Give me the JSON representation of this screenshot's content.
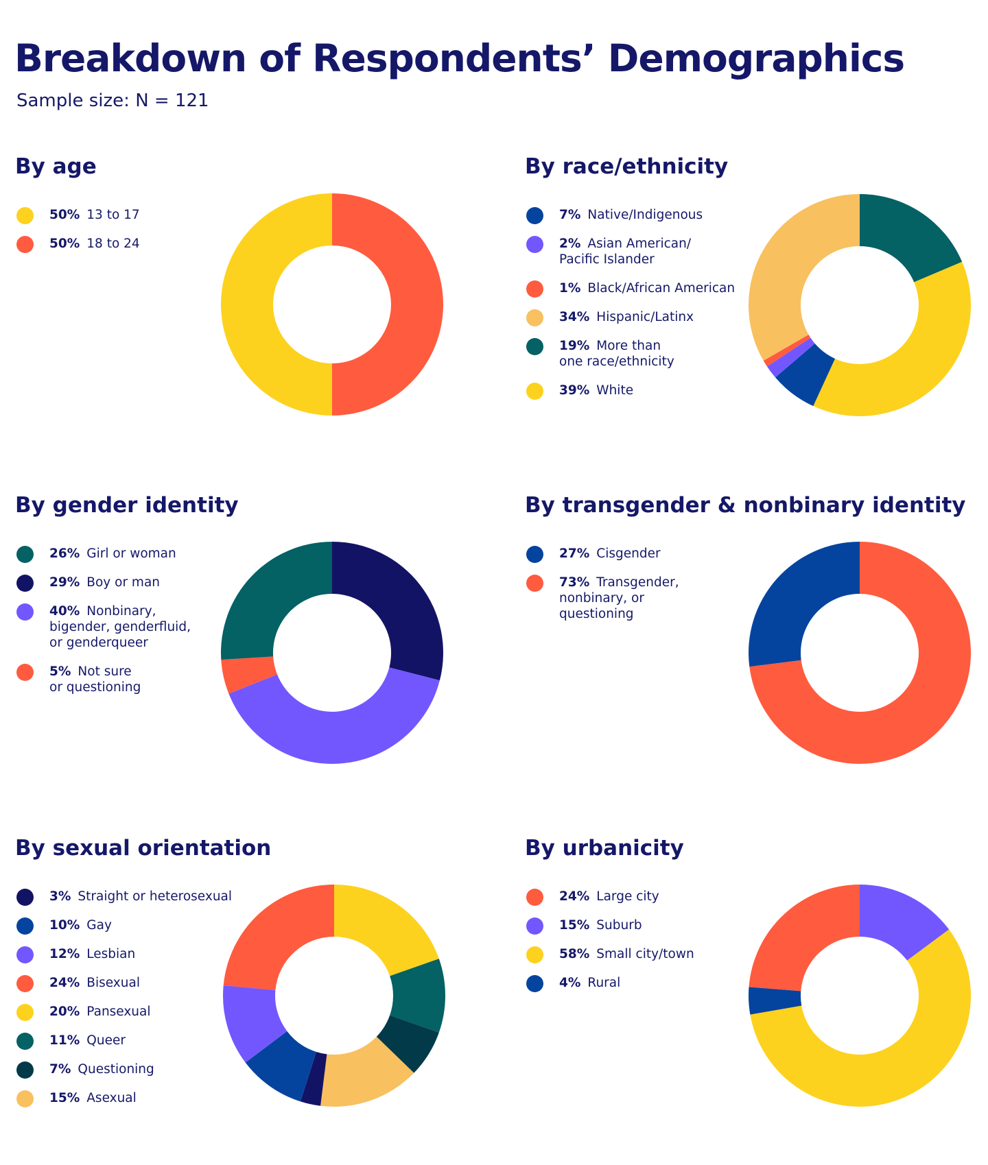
{
  "title": "Breakdown of Respondents’ Demographics",
  "subtitle": "Sample size: N = 121",
  "colors": {
    "text": "#151868",
    "yellow": "#FDD21E",
    "red": "#FF5B3F",
    "blue": "#05449E",
    "purple": "#7257FF",
    "light_orange": "#F8C05F",
    "teal": "#046164",
    "navy": "#131365",
    "dark_teal": "#023A4A"
  },
  "chart_data": [
    {
      "type": "pie",
      "title": "By age",
      "categories": [
        "13 to 17",
        "18 to 24"
      ],
      "values": [
        50,
        50
      ],
      "value_labels": [
        "50%",
        "50%"
      ],
      "colors": [
        "#FDD21E",
        "#FF5B3F"
      ],
      "slice_order": [
        1,
        0
      ],
      "donut": true
    },
    {
      "type": "pie",
      "title": "By race/ethnicity",
      "categories": [
        "Native/Indigenous",
        "Asian American/\nPacific Islander",
        "Black/African American",
        "Hispanic/Latinx",
        "More than\none race/ethnicity",
        "White"
      ],
      "values": [
        7,
        2,
        1,
        34,
        19,
        39
      ],
      "value_labels": [
        "7%",
        "2%",
        "1%",
        "34%",
        "19%",
        "39%"
      ],
      "colors": [
        "#05449E",
        "#7257FF",
        "#FF5B3F",
        "#F8C05F",
        "#046164",
        "#FDD21E"
      ],
      "slice_order": [
        4,
        5,
        0,
        1,
        2,
        3
      ],
      "donut": true
    },
    {
      "type": "pie",
      "title": "By gender identity",
      "categories": [
        "Girl or woman",
        "Boy or man",
        "Nonbinary,\nbigender, genderfluid,\nor genderqueer",
        "Not sure\nor questioning"
      ],
      "values": [
        26,
        29,
        40,
        5
      ],
      "value_labels": [
        "26%",
        "29%",
        "40%",
        "5%"
      ],
      "colors": [
        "#046164",
        "#131365",
        "#7257FF",
        "#FF5B3F"
      ],
      "slice_order": [
        1,
        2,
        3,
        0
      ],
      "donut": true
    },
    {
      "type": "pie",
      "title": "By transgender & nonbinary identity",
      "categories": [
        "Cisgender",
        "Transgender,\nnonbinary, or\nquestioning"
      ],
      "values": [
        27,
        73
      ],
      "value_labels": [
        "27%",
        "73%"
      ],
      "colors": [
        "#05449E",
        "#FF5B3F"
      ],
      "slice_order": [
        1,
        0
      ],
      "donut": true
    },
    {
      "type": "pie",
      "title": "By sexual orientation",
      "categories": [
        "Straight or heterosexual",
        "Gay",
        "Lesbian",
        "Bisexual",
        "Pansexual",
        "Queer",
        "Questioning",
        "Asexual"
      ],
      "values": [
        3,
        10,
        12,
        24,
        20,
        11,
        7,
        15
      ],
      "value_labels": [
        "3%",
        "10%",
        "12%",
        "24%",
        "20%",
        "11%",
        "7%",
        "15%"
      ],
      "colors": [
        "#131365",
        "#05449E",
        "#7257FF",
        "#FF5B3F",
        "#FDD21E",
        "#046164",
        "#023A4A",
        "#F8C05F"
      ],
      "slice_order": [
        4,
        5,
        6,
        7,
        0,
        1,
        2,
        3
      ],
      "donut": true
    },
    {
      "type": "pie",
      "title": "By urbanicity",
      "categories": [
        "Large city",
        "Suburb",
        "Small city/town",
        "Rural"
      ],
      "values": [
        24,
        15,
        58,
        4
      ],
      "value_labels": [
        "24%",
        "15%",
        "58%",
        "4%"
      ],
      "colors": [
        "#FF5B3F",
        "#7257FF",
        "#FDD21E",
        "#05449E"
      ],
      "slice_order": [
        1,
        2,
        3,
        0
      ],
      "donut": true
    }
  ]
}
